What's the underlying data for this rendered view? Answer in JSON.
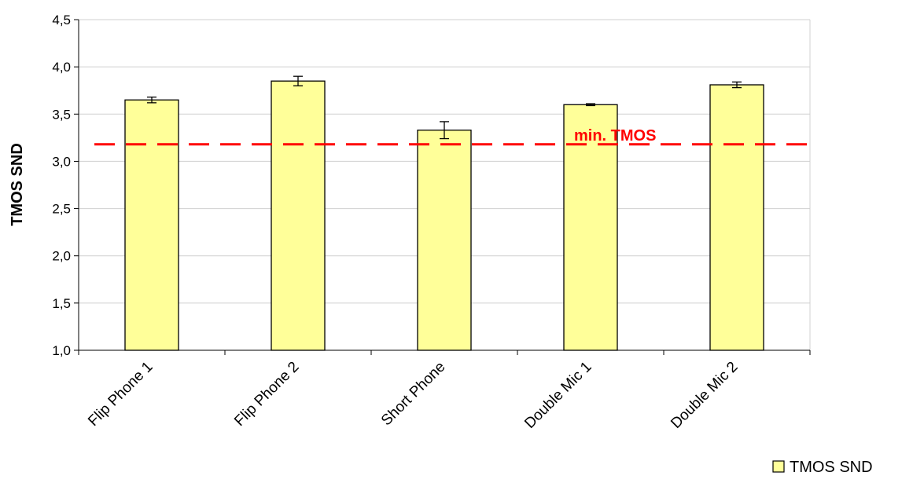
{
  "chart_data": {
    "type": "bar",
    "ylabel": "TMOS SND",
    "xlabel": "",
    "categories": [
      "Flip Phone 1",
      "Flip Phone 2",
      "Short Phone",
      "Double Mic 1",
      "Double Mic 2"
    ],
    "series": [
      {
        "name": "TMOS SND",
        "values": [
          3.65,
          3.85,
          3.33,
          3.6,
          3.81
        ],
        "error": [
          0.03,
          0.05,
          0.09,
          0.01,
          0.03
        ],
        "color": "#ffff99"
      }
    ],
    "ylim": [
      1.0,
      4.5
    ],
    "yticks": [
      "1,0",
      "1,5",
      "2,0",
      "2,5",
      "3,0",
      "3,5",
      "4,0",
      "4,5"
    ],
    "ytick_values": [
      1.0,
      1.5,
      2.0,
      2.5,
      3.0,
      3.5,
      4.0,
      4.5
    ],
    "reference_line": {
      "label": "min. TMOS",
      "value": 3.18,
      "color": "#ff0000",
      "style": "dashed"
    },
    "grid": true,
    "legend_position": "bottom-right"
  }
}
